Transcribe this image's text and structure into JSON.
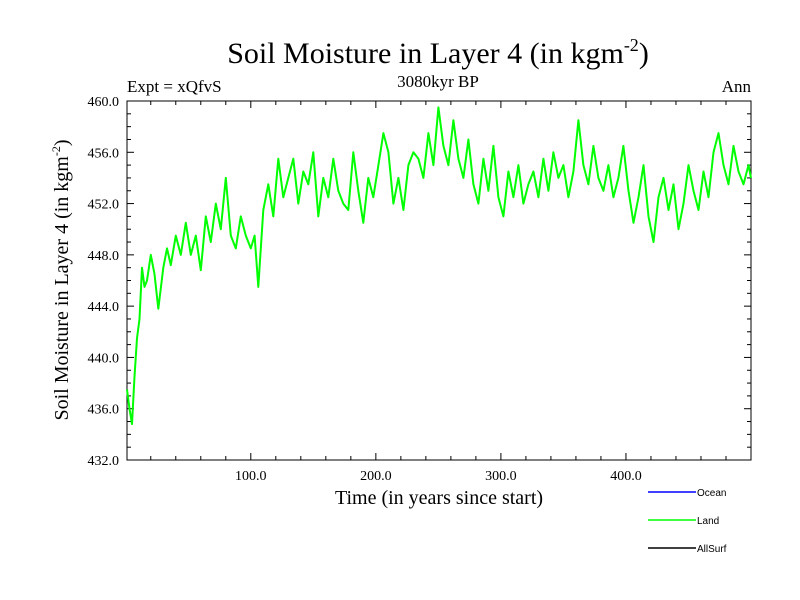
{
  "chart_data": {
    "type": "line",
    "title_main": "Soil Moisture in Layer 4 (in kgm",
    "title_sup": "-2",
    "title_close": ")",
    "subtitle_left": "Expt = xQfvS",
    "subtitle_center": "3080kyr BP",
    "subtitle_right": "Ann",
    "xlabel": "Time (in years since start)",
    "ylabel_main": "Soil Moisture in Layer 4 (in kgm",
    "ylabel_sup": "-2",
    "ylabel_close": ")",
    "xlim": [
      1,
      500
    ],
    "ylim": [
      432,
      460
    ],
    "xticks": [
      100,
      200,
      300,
      400
    ],
    "xtick_labels": [
      "100.0",
      "200.0",
      "300.0",
      "400.0"
    ],
    "yticks": [
      432,
      436,
      440,
      444,
      448,
      452,
      456,
      460
    ],
    "ytick_labels": [
      "432.0",
      "436.0",
      "440.0",
      "444.0",
      "448.0",
      "452.0",
      "456.0",
      "460.0"
    ],
    "legend": [
      {
        "name": "Ocean",
        "color": "#0000ff"
      },
      {
        "name": "Land",
        "color": "#00ff00"
      },
      {
        "name": "AllSurf",
        "color": "#000000"
      }
    ],
    "series": [
      {
        "name": "Land",
        "color": "#00ff00",
        "x": [
          1,
          3,
          5,
          7,
          9,
          11,
          13,
          15,
          17,
          20,
          23,
          26,
          30,
          33,
          36,
          40,
          44,
          48,
          52,
          56,
          60,
          64,
          68,
          72,
          76,
          80,
          84,
          88,
          92,
          96,
          100,
          103,
          106,
          110,
          114,
          118,
          122,
          126,
          130,
          134,
          138,
          142,
          146,
          150,
          154,
          158,
          162,
          166,
          170,
          174,
          178,
          182,
          186,
          190,
          194,
          198,
          202,
          206,
          210,
          214,
          218,
          222,
          226,
          230,
          234,
          238,
          242,
          246,
          250,
          254,
          258,
          262,
          266,
          270,
          274,
          278,
          282,
          286,
          290,
          294,
          298,
          302,
          306,
          310,
          314,
          318,
          322,
          326,
          330,
          334,
          338,
          342,
          346,
          350,
          354,
          358,
          362,
          366,
          370,
          374,
          378,
          382,
          386,
          390,
          394,
          398,
          402,
          406,
          410,
          414,
          418,
          422,
          426,
          430,
          434,
          438,
          442,
          446,
          450,
          454,
          458,
          462,
          466,
          470,
          474,
          478,
          482,
          486,
          490,
          494,
          498,
          500
        ],
        "y": [
          437.5,
          436.0,
          434.8,
          438.5,
          441.5,
          443.0,
          447.0,
          445.5,
          446.0,
          448.0,
          446.5,
          443.8,
          447.0,
          448.5,
          447.2,
          449.5,
          448.0,
          450.5,
          448.0,
          449.5,
          446.8,
          451.0,
          449.0,
          452.0,
          450.0,
          454.0,
          449.5,
          448.5,
          451.0,
          449.5,
          448.5,
          449.5,
          445.5,
          451.5,
          453.5,
          451.0,
          455.5,
          452.5,
          454.0,
          455.5,
          452.0,
          454.5,
          453.5,
          456.0,
          451.0,
          454.0,
          452.5,
          455.5,
          453.0,
          452.0,
          451.5,
          456.0,
          453.0,
          450.5,
          454.0,
          452.5,
          455.0,
          457.5,
          456.0,
          452.0,
          454.0,
          451.5,
          455.0,
          456.0,
          455.5,
          454.0,
          457.5,
          455.0,
          459.5,
          456.5,
          455.0,
          458.5,
          455.5,
          454.0,
          457.0,
          453.5,
          452.0,
          455.5,
          453.0,
          456.5,
          452.5,
          451.0,
          454.5,
          452.5,
          455.0,
          452.0,
          453.5,
          454.5,
          452.5,
          455.5,
          453.0,
          456.0,
          454.0,
          455.0,
          452.5,
          454.5,
          458.5,
          455.0,
          453.5,
          456.5,
          454.0,
          453.0,
          455.0,
          452.5,
          454.0,
          456.5,
          453.0,
          450.5,
          452.5,
          455.0,
          451.0,
          449.0,
          452.5,
          454.0,
          451.5,
          453.5,
          450.0,
          452.0,
          455.0,
          453.0,
          451.5,
          454.5,
          452.5,
          456.0,
          457.5,
          455.0,
          453.5,
          456.5,
          454.5,
          453.5,
          455.0,
          454.0
        ]
      }
    ]
  }
}
